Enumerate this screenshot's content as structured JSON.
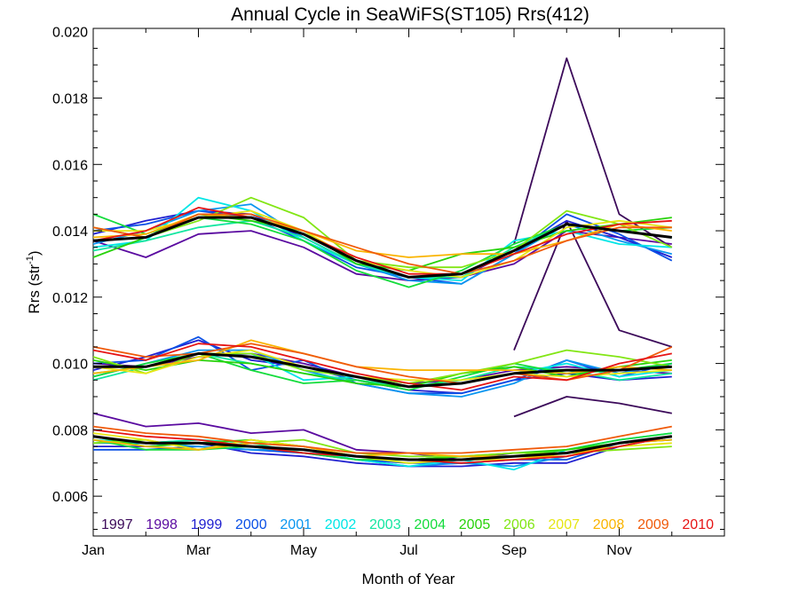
{
  "chart_data": {
    "type": "line",
    "title": "Annual Cycle in SeaWiFS(ST105) Rrs(412)",
    "xlabel": "Month of Year",
    "ylabel": "Rrs (str",
    "ylabel_sup": "-1",
    "ylabel_close": ")",
    "xlim": [
      1,
      13
    ],
    "ylim": [
      0.0048,
      0.0201
    ],
    "x_ticks": [
      1,
      3,
      5,
      7,
      9,
      11
    ],
    "x_tick_labels": [
      "Jan",
      "Mar",
      "May",
      "Jul",
      "Sep",
      "Nov"
    ],
    "y_ticks": [
      0.006,
      0.008,
      0.01,
      0.012,
      0.014,
      0.016,
      0.018,
      0.02
    ],
    "y_tick_labels": [
      "0.006",
      "0.008",
      "0.010",
      "0.012",
      "0.014",
      "0.016",
      "0.018",
      "0.020"
    ],
    "x": [
      1,
      2,
      3,
      4,
      5,
      6,
      7,
      8,
      9,
      10,
      11,
      12
    ],
    "legend_position": "bottom inside",
    "climatology_color": "#000000",
    "series": [
      {
        "name": "1997",
        "color": "#3c0a5a",
        "upper": [
          null,
          null,
          null,
          null,
          null,
          null,
          null,
          null,
          0.0104,
          0.0143,
          0.011,
          0.0105
        ],
        "upper2": [
          null,
          null,
          null,
          null,
          null,
          null,
          null,
          null,
          0.0136,
          0.0192,
          0.0145,
          0.0135
        ],
        "middle": [
          null,
          null,
          null,
          null,
          null,
          null,
          null,
          null,
          0.0084,
          0.009,
          0.0088,
          0.0085
        ],
        "lower": [
          null,
          null,
          null,
          null,
          null,
          null,
          null,
          null,
          null,
          null,
          null,
          null
        ]
      },
      {
        "name": "1998",
        "color": "#5a0aa0",
        "upper": [
          0.0137,
          0.0132,
          0.0139,
          0.014,
          0.0135,
          0.0127,
          0.0125,
          0.0126,
          0.013,
          0.014,
          0.0138,
          0.0136
        ],
        "middle": [
          0.01,
          0.0099,
          0.0102,
          0.0103,
          0.01,
          0.0096,
          0.0094,
          0.0095,
          0.0098,
          0.0099,
          0.0098,
          0.0097
        ],
        "lower": [
          0.0085,
          0.0081,
          0.0082,
          0.0079,
          0.008,
          0.0074,
          0.0073,
          0.0071,
          0.0073,
          0.0073,
          0.0076,
          0.0077
        ]
      },
      {
        "name": "1999",
        "color": "#2020d0",
        "upper": [
          0.0139,
          0.0143,
          0.0146,
          0.0145,
          0.0138,
          0.013,
          0.0126,
          0.0126,
          0.0134,
          0.0143,
          0.0138,
          0.0132
        ],
        "middle": [
          0.0098,
          0.0102,
          0.0107,
          0.0101,
          0.0099,
          0.0095,
          0.0092,
          0.0091,
          0.0095,
          0.0097,
          0.0095,
          0.0096
        ],
        "lower": [
          0.0075,
          0.0075,
          0.0076,
          0.0073,
          0.0072,
          0.007,
          0.0069,
          0.0069,
          0.007,
          0.007,
          0.0075,
          0.0078
        ]
      },
      {
        "name": "2000",
        "color": "#0a50e6",
        "upper": [
          0.014,
          0.0142,
          0.0146,
          0.0144,
          0.0137,
          0.0129,
          0.0126,
          0.0124,
          0.0133,
          0.0145,
          0.0139,
          0.0131
        ],
        "middle": [
          0.01,
          0.0101,
          0.0108,
          0.0098,
          0.0101,
          0.0094,
          0.0091,
          0.0091,
          0.0095,
          0.0101,
          0.0096,
          0.01
        ],
        "lower": [
          0.0074,
          0.0074,
          0.0075,
          0.0074,
          0.0073,
          0.0071,
          0.007,
          0.007,
          0.0071,
          0.0071,
          0.0076,
          0.0078
        ]
      },
      {
        "name": "2001",
        "color": "#0a96f0",
        "upper": [
          0.0136,
          0.014,
          0.0146,
          0.0148,
          0.0138,
          0.013,
          0.0125,
          0.0124,
          0.0133,
          0.0142,
          0.0137,
          0.0133
        ],
        "middle": [
          0.0096,
          0.01,
          0.0104,
          0.0104,
          0.0098,
          0.0094,
          0.0091,
          0.009,
          0.0094,
          0.0101,
          0.0097,
          0.01
        ],
        "lower": [
          0.0076,
          0.0076,
          0.0075,
          0.0074,
          0.0074,
          0.0071,
          0.0069,
          0.007,
          0.0069,
          0.0072,
          0.0076,
          0.0078
        ]
      },
      {
        "name": "2002",
        "color": "#00e6e6",
        "upper": [
          0.0135,
          0.0137,
          0.015,
          0.0146,
          0.0137,
          0.013,
          0.0126,
          0.0125,
          0.0137,
          0.014,
          0.0136,
          0.0135
        ],
        "middle": [
          0.0097,
          0.0099,
          0.0103,
          0.0103,
          0.0095,
          0.0096,
          0.0093,
          0.0094,
          0.0097,
          0.01,
          0.0096,
          0.0098
        ],
        "lower": [
          0.0077,
          0.0076,
          0.0077,
          0.0075,
          0.0074,
          0.0071,
          0.0069,
          0.0071,
          0.0068,
          0.0074,
          0.0077,
          0.0079
        ]
      },
      {
        "name": "2003",
        "color": "#14e6a0",
        "upper": [
          0.0134,
          0.0137,
          0.0141,
          0.0143,
          0.0138,
          0.013,
          0.0126,
          0.0126,
          0.0135,
          0.0142,
          0.014,
          0.0138
        ],
        "middle": [
          0.0095,
          0.0099,
          0.0103,
          0.01,
          0.0097,
          0.0095,
          0.0093,
          0.0095,
          0.0099,
          0.0098,
          0.0095,
          0.0097
        ],
        "lower": [
          0.0078,
          0.0076,
          0.0077,
          0.0076,
          0.0073,
          0.0072,
          0.0071,
          0.0072,
          0.0072,
          0.0073,
          0.0076,
          0.0077
        ]
      },
      {
        "name": "2004",
        "color": "#14dc3c",
        "upper": [
          0.0145,
          0.0139,
          0.0144,
          0.0142,
          0.0137,
          0.0128,
          0.0123,
          0.0128,
          0.0136,
          0.0142,
          0.014,
          0.0141
        ],
        "middle": [
          0.0096,
          0.01,
          0.0103,
          0.0098,
          0.0094,
          0.0095,
          0.0092,
          0.0096,
          0.01,
          0.0097,
          0.0098,
          0.01
        ],
        "lower": [
          0.0077,
          0.0074,
          0.0074,
          0.0075,
          0.0073,
          0.0071,
          0.0071,
          0.0072,
          0.0072,
          0.0074,
          0.0077,
          0.0079
        ]
      },
      {
        "name": "2005",
        "color": "#28d20a",
        "upper": [
          0.0132,
          0.0138,
          0.0145,
          0.0143,
          0.014,
          0.013,
          0.0128,
          0.0133,
          0.0135,
          0.014,
          0.0142,
          0.0144
        ],
        "middle": [
          0.0101,
          0.0098,
          0.0101,
          0.01,
          0.0097,
          0.0094,
          0.0093,
          0.0097,
          0.0099,
          0.0096,
          0.0099,
          0.0101
        ],
        "lower": [
          0.0078,
          0.0075,
          0.0076,
          0.0077,
          0.0075,
          0.0072,
          0.0071,
          0.0072,
          0.0073,
          0.0074,
          0.0076,
          0.0078
        ]
      },
      {
        "name": "2006",
        "color": "#82e614",
        "upper": [
          0.0141,
          0.0138,
          0.0143,
          0.015,
          0.0144,
          0.0131,
          0.0129,
          0.0129,
          0.0134,
          0.0146,
          0.0142,
          0.0135
        ],
        "middle": [
          0.0102,
          0.0097,
          0.0103,
          0.0103,
          0.0098,
          0.0096,
          0.0094,
          0.0097,
          0.01,
          0.0104,
          0.0102,
          0.0099
        ],
        "lower": [
          0.0076,
          0.0077,
          0.0074,
          0.0076,
          0.0077,
          0.0073,
          0.0072,
          0.0072,
          0.0073,
          0.0073,
          0.0074,
          0.0075
        ]
      },
      {
        "name": "2007",
        "color": "#e6e614",
        "upper": [
          0.014,
          0.014,
          0.0144,
          0.0146,
          0.014,
          0.0131,
          0.0128,
          0.0126,
          0.0131,
          0.0141,
          0.0143,
          0.0141
        ],
        "middle": [
          0.0099,
          0.0097,
          0.0102,
          0.0104,
          0.0099,
          0.0096,
          0.0095,
          0.0095,
          0.0097,
          0.0096,
          0.0097,
          0.0098
        ],
        "lower": [
          0.0079,
          0.0077,
          0.0074,
          0.0077,
          0.0075,
          0.0072,
          0.007,
          0.0071,
          0.0071,
          0.0073,
          0.0075,
          0.0076
        ]
      },
      {
        "name": "2008",
        "color": "#fab400",
        "upper": [
          0.0138,
          0.0139,
          0.0145,
          0.0144,
          0.014,
          0.0134,
          0.0132,
          0.0133,
          0.0133,
          0.0137,
          0.0142,
          0.014
        ],
        "middle": [
          0.0097,
          0.0099,
          0.0101,
          0.0107,
          0.0103,
          0.0099,
          0.0098,
          0.0098,
          0.0098,
          0.0097,
          0.0099,
          0.0098
        ],
        "lower": [
          0.0077,
          0.0075,
          0.0074,
          0.0076,
          0.0075,
          0.0072,
          0.0073,
          0.0072,
          0.0072,
          0.0072,
          0.0076,
          0.0077
        ]
      },
      {
        "name": "2009",
        "color": "#f05a0a",
        "upper": [
          0.0141,
          0.0138,
          0.0145,
          0.0145,
          0.014,
          0.0135,
          0.013,
          0.0127,
          0.0131,
          0.0137,
          0.0141,
          0.0141
        ],
        "middle": [
          0.0105,
          0.0102,
          0.0103,
          0.0106,
          0.0103,
          0.0099,
          0.0096,
          0.0094,
          0.0097,
          0.0095,
          0.0098,
          0.0105
        ],
        "lower": [
          0.0081,
          0.0079,
          0.0078,
          0.0076,
          0.0075,
          0.0073,
          0.0073,
          0.0073,
          0.0074,
          0.0075,
          0.0078,
          0.0081
        ]
      },
      {
        "name": "2010",
        "color": "#e61414",
        "upper": [
          0.0137,
          0.014,
          0.0147,
          0.0144,
          0.0139,
          0.0132,
          0.0127,
          0.0127,
          0.0133,
          0.0139,
          0.0142,
          0.0143
        ],
        "middle": [
          0.0104,
          0.0101,
          0.0106,
          0.0105,
          0.0101,
          0.0097,
          0.0094,
          0.0092,
          0.0096,
          0.0095,
          0.01,
          0.0103
        ],
        "lower": [
          0.008,
          0.0078,
          0.0077,
          0.0075,
          0.0073,
          0.0072,
          0.0071,
          0.007,
          0.0071,
          0.0072,
          0.0075,
          0.0078
        ]
      }
    ],
    "climatology": {
      "upper": [
        0.0137,
        0.0138,
        0.0144,
        0.0144,
        0.0139,
        0.0131,
        0.0126,
        0.0127,
        0.0134,
        0.0142,
        0.014,
        0.0138
      ],
      "middle": [
        0.0099,
        0.0099,
        0.0103,
        0.0102,
        0.0099,
        0.0096,
        0.0093,
        0.0094,
        0.0097,
        0.0098,
        0.0098,
        0.0099
      ],
      "lower": [
        0.0078,
        0.0076,
        0.0076,
        0.0075,
        0.0074,
        0.0072,
        0.0071,
        0.0071,
        0.0072,
        0.0073,
        0.0076,
        0.0078
      ]
    }
  }
}
